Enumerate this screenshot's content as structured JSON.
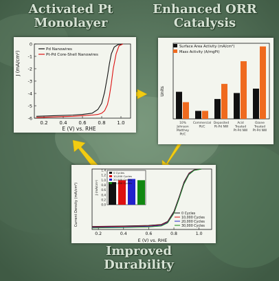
{
  "headings": {
    "top_left": "Activated Pt Monolayer",
    "top_right": "Enhanced ORR Catalysis",
    "bottom": "Improved Durability"
  },
  "colors": {
    "background": "#6f8f74",
    "arrow": "#f2cc12",
    "heading_text": "#d6e2d4",
    "series_black": "#111111",
    "series_red": "#dd1111",
    "series_orange": "#ef6a1f",
    "series_blue": "#2222cc",
    "series_green": "#118811"
  },
  "chart_data": [
    {
      "type": "line",
      "xlabel": "E (V) vs. RHE",
      "ylabel": "J (mA/cm²)",
      "xlim": [
        0.1,
        1.1
      ],
      "ylim": [
        -6,
        0
      ],
      "xticks": [
        "0.2",
        "0.4",
        "0.6",
        "0.8",
        "1.0"
      ],
      "yticks": [
        "0",
        "-1",
        "-2",
        "-3",
        "-4",
        "-5",
        "-6"
      ],
      "legend": "top-left",
      "series": [
        {
          "name": "Pd Nanowires",
          "x": [
            0.12,
            0.3,
            0.5,
            0.6,
            0.7,
            0.76,
            0.8,
            0.83,
            0.86,
            0.88,
            0.9,
            0.93,
            0.97,
            1.02
          ],
          "y": [
            -5.85,
            -5.8,
            -5.75,
            -5.7,
            -5.6,
            -5.3,
            -4.8,
            -3.9,
            -2.6,
            -1.6,
            -0.8,
            -0.25,
            -0.05,
            0
          ]
        },
        {
          "name": "Pt-Pd Core-Shell Nanowires",
          "x": [
            0.12,
            0.3,
            0.5,
            0.6,
            0.7,
            0.76,
            0.8,
            0.83,
            0.86,
            0.88,
            0.9,
            0.92,
            0.95,
            0.98,
            1.02
          ],
          "y": [
            -5.95,
            -5.9,
            -5.85,
            -5.8,
            -5.75,
            -5.7,
            -5.6,
            -5.4,
            -4.9,
            -4.2,
            -3.2,
            -2.0,
            -0.8,
            -0.15,
            0
          ]
        }
      ]
    },
    {
      "type": "bar",
      "ylabel": "Units",
      "legend": "top-left",
      "categories": [
        "10% Johnson Matthey Pt/C",
        "Commercial Pt/C",
        "Deposited Pt-Pd NW",
        "Acid Treated Pt-Pd NW",
        "Ozone Treated Pt-Pd NW"
      ],
      "series": [
        {
          "name": "Surface Area Activity (mA/cm²)",
          "values": [
            0.68,
            0.2,
            0.5,
            0.65,
            0.76
          ]
        },
        {
          "name": "Mass Activity (A/mgPt)",
          "values": [
            0.42,
            0.2,
            0.88,
            1.45,
            1.82
          ]
        }
      ],
      "ylim": [
        0,
        1.9
      ]
    },
    {
      "type": "line",
      "xlabel": "E (V) vs. RHE",
      "ylabel": "Current Density (mA/cm²)",
      "xlim": [
        0.15,
        1.1
      ],
      "ylim": [
        -6,
        0
      ],
      "xticks": [
        "0.2",
        "0.4",
        "0.6",
        "0.8",
        "1.0"
      ],
      "legend": "bottom-right",
      "series": [
        {
          "name": "0 Cycles",
          "x": [
            0.15,
            0.4,
            0.6,
            0.7,
            0.75,
            0.8,
            0.84,
            0.88,
            0.92,
            0.96,
            1.02
          ],
          "y": [
            -5.7,
            -5.65,
            -5.6,
            -5.5,
            -5.2,
            -4.2,
            -2.8,
            -1.3,
            -0.4,
            -0.08,
            0
          ]
        },
        {
          "name": "10,000 Cycles",
          "x": [
            0.15,
            0.4,
            0.6,
            0.7,
            0.75,
            0.8,
            0.84,
            0.88,
            0.92,
            0.96,
            1.02
          ],
          "y": [
            -5.75,
            -5.7,
            -5.65,
            -5.55,
            -5.25,
            -4.3,
            -2.9,
            -1.4,
            -0.45,
            -0.1,
            0
          ]
        },
        {
          "name": "20,000 Cycles",
          "x": [
            0.15,
            0.4,
            0.6,
            0.7,
            0.75,
            0.8,
            0.84,
            0.88,
            0.92,
            0.96,
            1.02
          ],
          "y": [
            -5.8,
            -5.75,
            -5.7,
            -5.6,
            -5.3,
            -4.35,
            -2.95,
            -1.45,
            -0.5,
            -0.12,
            0
          ]
        },
        {
          "name": "30,000 Cycles",
          "x": [
            0.15,
            0.4,
            0.6,
            0.7,
            0.75,
            0.8,
            0.84,
            0.88,
            0.92,
            0.96,
            1.02
          ],
          "y": [
            -5.85,
            -5.8,
            -5.75,
            -5.65,
            -5.35,
            -4.4,
            -3.0,
            -1.5,
            -0.55,
            -0.14,
            0
          ]
        }
      ],
      "inset": {
        "type": "bar",
        "ylabel": "J (mA/cm²)",
        "yticks": [
          "1.4",
          "1.2",
          "1.0",
          "0.8",
          "0.6",
          "0.4",
          "0.2",
          "0.0"
        ],
        "ylim": [
          0,
          1.4
        ],
        "categories": [
          "0 Cycles",
          "10,000 Cycles",
          "20,000 Cycles",
          "30,000 Cycles"
        ],
        "values": [
          0.92,
          1.0,
          1.05,
          1.0
        ]
      }
    }
  ]
}
